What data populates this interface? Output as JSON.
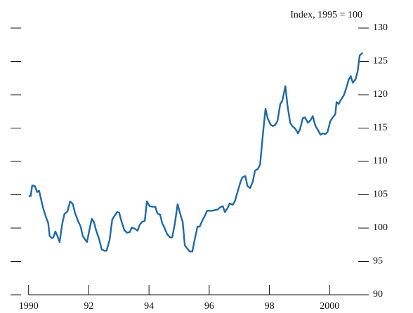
{
  "chart_data": {
    "type": "line",
    "y_label": "Index, 1995 = 100",
    "x": [
      1990.0,
      1990.07,
      1990.12,
      1990.21,
      1990.28,
      1990.35,
      1990.42,
      1990.49,
      1990.58,
      1990.65,
      1990.7,
      1990.77,
      1990.82,
      1990.89,
      1990.96,
      1991.03,
      1991.12,
      1991.19,
      1991.29,
      1991.38,
      1991.47,
      1991.54,
      1991.64,
      1991.73,
      1991.8,
      1991.89,
      1991.94,
      1992.01,
      1992.1,
      1992.17,
      1992.24,
      1992.34,
      1992.43,
      1992.52,
      1992.59,
      1992.69,
      1992.78,
      1992.85,
      1992.94,
      1993.01,
      1993.08,
      1993.18,
      1993.27,
      1993.36,
      1993.43,
      1993.53,
      1993.62,
      1993.69,
      1993.76,
      1993.86,
      1993.93,
      1994.02,
      1994.11,
      1994.21,
      1994.28,
      1994.37,
      1994.44,
      1994.51,
      1994.6,
      1994.7,
      1994.77,
      1994.86,
      1994.95,
      1995.02,
      1995.12,
      1995.19,
      1995.28,
      1995.35,
      1995.44,
      1995.51,
      1995.61,
      1995.68,
      1995.77,
      1995.86,
      1995.93,
      1996.03,
      1996.1,
      1996.19,
      1996.29,
      1996.36,
      1996.45,
      1996.52,
      1996.61,
      1996.68,
      1996.78,
      1996.85,
      1996.94,
      1997.03,
      1997.1,
      1997.2,
      1997.27,
      1997.36,
      1997.45,
      1997.52,
      1997.62,
      1997.69,
      1997.78,
      1997.87,
      1997.94,
      1998.04,
      1998.11,
      1998.2,
      1998.27,
      1998.36,
      1998.43,
      1998.53,
      1998.6,
      1998.69,
      1998.76,
      1998.86,
      1998.95,
      1999.02,
      1999.11,
      1999.18,
      1999.28,
      1999.37,
      1999.44,
      1999.53,
      1999.6,
      1999.7,
      1999.77,
      1999.86,
      1999.93,
      2000.02,
      2000.09,
      2000.19,
      2000.23,
      2000.3,
      2000.37,
      2000.47,
      2000.54,
      2000.63,
      2000.7,
      2000.77,
      2000.86,
      2000.93,
      2001.0,
      2001.1
    ],
    "series": [
      {
        "color": "#1f6aa5",
        "values": [
          104.8,
          104.8,
          106.4,
          106.3,
          105.4,
          105.6,
          104.2,
          102.9,
          101.6,
          100.8,
          98.8,
          98.5,
          98.6,
          99.5,
          98.8,
          97.9,
          100.7,
          102.1,
          102.5,
          104.0,
          103.6,
          102.3,
          101.1,
          100.2,
          98.8,
          98.2,
          97.9,
          99.5,
          101.4,
          100.9,
          99.7,
          98.4,
          96.8,
          96.6,
          96.6,
          98.2,
          101.3,
          101.8,
          102.4,
          102.3,
          101.1,
          99.7,
          99.3,
          99.4,
          100.1,
          99.9,
          99.6,
          100.5,
          100.9,
          101.1,
          104.0,
          103.3,
          103.2,
          103.2,
          102.2,
          102.0,
          100.7,
          100.1,
          99.1,
          98.6,
          98.6,
          100.7,
          103.6,
          102.4,
          100.9,
          97.4,
          96.9,
          96.5,
          96.5,
          98.1,
          100.2,
          100.2,
          101.1,
          101.9,
          102.6,
          102.6,
          102.6,
          102.7,
          102.8,
          103.1,
          103.3,
          102.4,
          103.0,
          103.7,
          103.5,
          104.0,
          105.4,
          106.8,
          107.6,
          107.8,
          106.3,
          106.0,
          107.0,
          108.6,
          108.9,
          109.5,
          113.9,
          117.9,
          116.5,
          115.5,
          115.3,
          115.5,
          116.1,
          118.6,
          119.1,
          121.3,
          118.4,
          115.8,
          115.3,
          114.9,
          114.2,
          114.9,
          116.5,
          116.6,
          115.8,
          116.2,
          116.8,
          115.3,
          114.8,
          114.0,
          114.2,
          114.1,
          114.4,
          116.0,
          116.5,
          117.1,
          118.9,
          118.6,
          119.2,
          119.9,
          120.8,
          122.2,
          122.8,
          121.8,
          122.3,
          123.5,
          125.9,
          126.3
        ]
      }
    ],
    "xlim": [
      1989.4,
      2001.3
    ],
    "xticks": [
      1990,
      {
        "value": 1992,
        "label": "92"
      },
      {
        "value": 1994,
        "label": "94"
      },
      {
        "value": 1996,
        "label": "96"
      },
      {
        "value": 1998,
        "label": "98"
      },
      2000
    ],
    "ylim": [
      90,
      130
    ],
    "yticks": [
      90,
      95,
      100,
      105,
      110,
      115,
      120,
      125,
      130
    ],
    "grid": false
  }
}
